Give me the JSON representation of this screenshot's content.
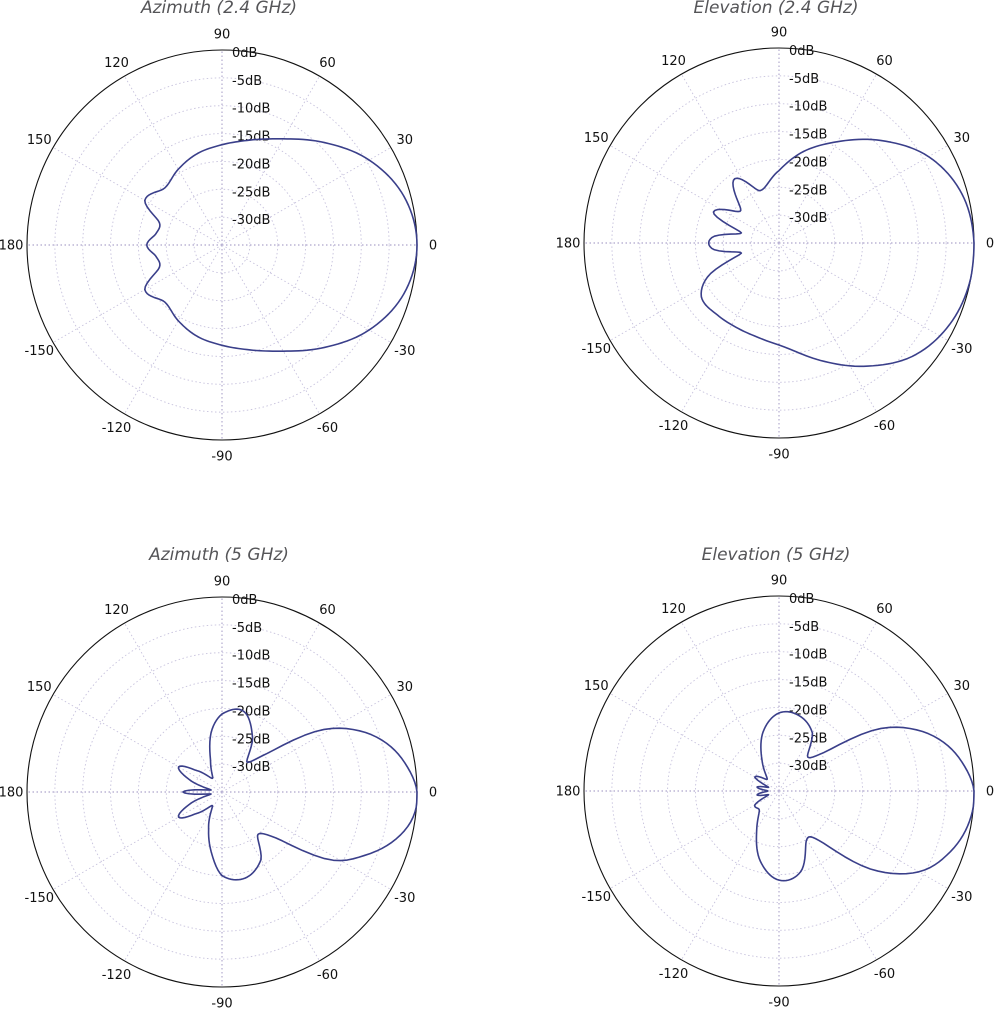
{
  "chart_data": [
    {
      "type": "polar",
      "title": "Azimuth (2.4 GHz)",
      "angle_ticks": [
        0,
        30,
        60,
        90,
        120,
        150,
        180,
        -150,
        -120,
        -90,
        -60,
        -30
      ],
      "radial_ticks": [
        "0dB",
        "-5dB",
        "-10dB",
        "-15dB",
        "-20dB",
        "-25dB",
        "-30dB"
      ],
      "rlim_db": [
        -35,
        0
      ],
      "grid": true,
      "series": [
        {
          "color": "#3a3f8a",
          "angles_deg": [
            0,
            15,
            30,
            45,
            60,
            75,
            90,
            105,
            120,
            135,
            150,
            160,
            170,
            180,
            190,
            200,
            210,
            225,
            240,
            255,
            270,
            285,
            300,
            315,
            330,
            345
          ],
          "values_db": [
            0,
            -1.2,
            -4.5,
            -9,
            -13,
            -15.5,
            -17,
            -18,
            -19.3,
            -20.5,
            -19,
            -23,
            -23,
            -21.5,
            -23,
            -23,
            -19,
            -20.5,
            -19.3,
            -18,
            -17,
            -15.5,
            -13,
            -9,
            -4.5,
            -1.2
          ]
        }
      ]
    },
    {
      "type": "polar",
      "title": "Elevation (2.4 GHz)",
      "angle_ticks": [
        0,
        30,
        60,
        90,
        120,
        150,
        180,
        -150,
        -120,
        -90,
        -60,
        -30
      ],
      "radial_ticks": [
        "0dB",
        "-5dB",
        "-10dB",
        "-15dB",
        "-20dB",
        "-25dB",
        "-30dB"
      ],
      "rlim_db": [
        -35,
        0
      ],
      "grid": true,
      "series": [
        {
          "color": "#3a3f8a",
          "angles_deg": [
            0,
            15,
            30,
            45,
            60,
            75,
            90,
            110,
            125,
            140,
            155,
            165,
            175,
            185,
            195,
            205,
            215,
            230,
            245,
            260,
            275,
            290,
            305,
            320,
            335,
            350
          ],
          "values_db": [
            0,
            -1,
            -4,
            -9,
            -14,
            -18,
            -22,
            -25,
            -21,
            -26,
            -22,
            -28,
            -23,
            -23,
            -28,
            -21,
            -18,
            -18,
            -18,
            -17.5,
            -16,
            -12.5,
            -8,
            -3.5,
            -1,
            0
          ]
        }
      ]
    },
    {
      "type": "polar",
      "title": "Azimuth (5 GHz)",
      "angle_ticks": [
        0,
        30,
        60,
        90,
        120,
        150,
        180,
        -150,
        -120,
        -90,
        -60,
        -30
      ],
      "radial_ticks": [
        "0dB",
        "-5dB",
        "-10dB",
        "-15dB",
        "-20dB",
        "-25dB",
        "-30dB"
      ],
      "rlim_db": [
        -35,
        0
      ],
      "grid": true,
      "series": [
        {
          "color": "#3a3f8a",
          "angles_deg": [
            0,
            8,
            16,
            24,
            32,
            40,
            50,
            60,
            75,
            90,
            100,
            110,
            125,
            140,
            150,
            160,
            170,
            180,
            190,
            200,
            210,
            220,
            235,
            250,
            260,
            270,
            285,
            300,
            310,
            320,
            328,
            336,
            344,
            352
          ],
          "values_db": [
            0,
            -1.5,
            -4,
            -8,
            -14,
            -24,
            -28,
            -24,
            -20,
            -21,
            -24,
            -29,
            -32,
            -29,
            -26,
            -29,
            -33,
            -28,
            -33,
            -29,
            -26,
            -29,
            -32,
            -28,
            -24,
            -20,
            -19,
            -21,
            -25,
            -22,
            -12,
            -7,
            -3,
            -0.5
          ]
        }
      ]
    },
    {
      "type": "polar",
      "title": "Elevation (5 GHz)",
      "angle_ticks": [
        0,
        30,
        60,
        90,
        120,
        150,
        180,
        -150,
        -120,
        -90,
        -60,
        -30
      ],
      "radial_ticks": [
        "0dB",
        "-5dB",
        "-10dB",
        "-15dB",
        "-20dB",
        "-25dB",
        "-30dB"
      ],
      "rlim_db": [
        -35,
        0
      ],
      "grid": true,
      "series": [
        {
          "color": "#3a3f8a",
          "angles_deg": [
            0,
            8,
            16,
            24,
            32,
            40,
            50,
            60,
            75,
            90,
            105,
            120,
            135,
            150,
            160,
            170,
            180,
            190,
            200,
            210,
            225,
            240,
            255,
            270,
            285,
            300,
            310,
            320,
            330,
            340,
            350
          ],
          "values_db": [
            0,
            -1.5,
            -4,
            -8,
            -14,
            -24,
            -27,
            -23,
            -21,
            -21,
            -24,
            -29,
            -32,
            -30,
            -33,
            -31,
            -33,
            -31,
            -33,
            -30,
            -30,
            -27,
            -22,
            -19,
            -20,
            -25,
            -23,
            -13,
            -6,
            -2.5,
            -0.5
          ]
        }
      ]
    }
  ]
}
